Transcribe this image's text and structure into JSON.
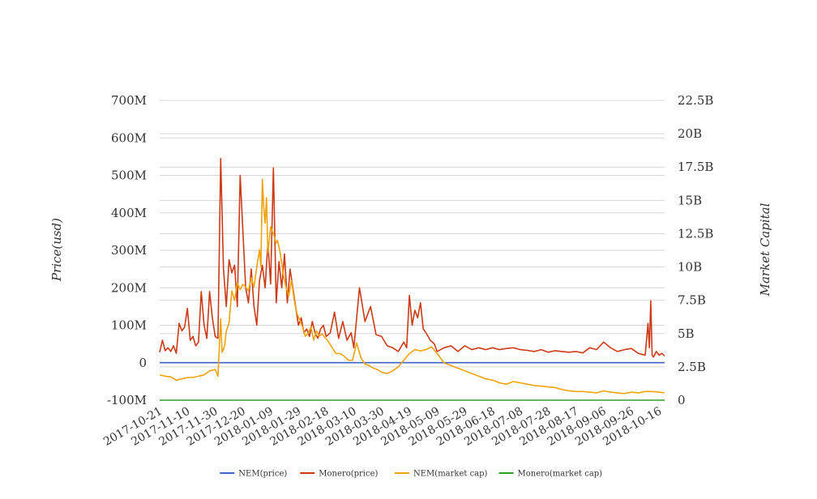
{
  "chart_data": {
    "type": "line",
    "title": "",
    "ylabel_left": "Price(usd)",
    "ylabel_right": "Market Capital",
    "left_ticks": [
      "-100M",
      "0",
      "100M",
      "200M",
      "300M",
      "400M",
      "500M",
      "600M",
      "700M"
    ],
    "right_ticks": [
      "0",
      "2.5B",
      "5B",
      "7.5B",
      "10B",
      "12.5B",
      "15B",
      "17.5B",
      "20B",
      "22.5B"
    ],
    "ylim_left": [
      -100000000,
      700000000
    ],
    "ylim_right": [
      0,
      22500000000
    ],
    "x_ticks": [
      "2017-10-21",
      "2017-11-10",
      "2017-11-30",
      "2017-12-20",
      "2018-01-09",
      "2018-01-29",
      "2018-02-18",
      "2018-03-10",
      "2018-03-30",
      "2018-04-19",
      "2018-05-09",
      "2018-05-29",
      "2018-06-18",
      "2018-07-08",
      "2018-07-28",
      "2018-08-17",
      "2018-09-06",
      "2018-09-26",
      "2018-10-16"
    ],
    "xlim": [
      "2017-10-21",
      "2018-10-20"
    ],
    "grid": true,
    "legend_position": "bottom",
    "series": [
      {
        "name": "NEM(price)",
        "axis": "left",
        "color": "#3b62c4",
        "x": [
          "2017-10-21",
          "2018-10-20"
        ],
        "values": [
          0.25,
          0.12
        ]
      },
      {
        "name": "Monero(price)",
        "axis": "left",
        "color": "#cc3a17",
        "x": [
          "2017-10-21",
          "2017-10-23",
          "2017-10-25",
          "2017-10-27",
          "2017-10-29",
          "2017-10-31",
          "2017-11-02",
          "2017-11-04",
          "2017-11-06",
          "2017-11-08",
          "2017-11-10",
          "2017-11-12",
          "2017-11-14",
          "2017-11-16",
          "2017-11-18",
          "2017-11-20",
          "2017-11-22",
          "2017-11-24",
          "2017-11-26",
          "2017-11-28",
          "2017-11-30",
          "2017-12-02",
          "2017-12-04",
          "2017-12-06",
          "2017-12-08",
          "2017-12-10",
          "2017-12-12",
          "2017-12-14",
          "2017-12-16",
          "2017-12-18",
          "2017-12-20",
          "2017-12-22",
          "2017-12-24",
          "2017-12-26",
          "2017-12-28",
          "2017-12-30",
          "2018-01-01",
          "2018-01-03",
          "2018-01-05",
          "2018-01-07",
          "2018-01-09",
          "2018-01-11",
          "2018-01-13",
          "2018-01-15",
          "2018-01-17",
          "2018-01-19",
          "2018-01-21",
          "2018-01-23",
          "2018-01-25",
          "2018-01-27",
          "2018-01-29",
          "2018-01-31",
          "2018-02-02",
          "2018-02-04",
          "2018-02-06",
          "2018-02-08",
          "2018-02-10",
          "2018-02-12",
          "2018-02-14",
          "2018-02-16",
          "2018-02-18",
          "2018-02-21",
          "2018-02-24",
          "2018-02-27",
          "2018-03-02",
          "2018-03-05",
          "2018-03-08",
          "2018-03-10",
          "2018-03-14",
          "2018-03-18",
          "2018-03-22",
          "2018-03-26",
          "2018-03-30",
          "2018-04-03",
          "2018-04-07",
          "2018-04-11",
          "2018-04-15",
          "2018-04-17",
          "2018-04-19",
          "2018-04-21",
          "2018-04-23",
          "2018-04-25",
          "2018-04-27",
          "2018-04-29",
          "2018-05-01",
          "2018-05-04",
          "2018-05-07",
          "2018-05-09",
          "2018-05-14",
          "2018-05-19",
          "2018-05-24",
          "2018-05-29",
          "2018-06-03",
          "2018-06-08",
          "2018-06-13",
          "2018-06-18",
          "2018-06-23",
          "2018-06-28",
          "2018-07-03",
          "2018-07-08",
          "2018-07-13",
          "2018-07-18",
          "2018-07-23",
          "2018-07-28",
          "2018-08-02",
          "2018-08-07",
          "2018-08-12",
          "2018-08-17",
          "2018-08-22",
          "2018-08-27",
          "2018-09-01",
          "2018-09-06",
          "2018-09-11",
          "2018-09-16",
          "2018-09-21",
          "2018-09-26",
          "2018-10-01",
          "2018-10-06",
          "2018-10-08",
          "2018-10-09",
          "2018-10-10",
          "2018-10-11",
          "2018-10-12",
          "2018-10-14",
          "2018-10-16",
          "2018-10-18",
          "2018-10-20"
        ],
        "values": [
          28000000,
          60000000,
          32000000,
          40000000,
          30000000,
          45000000,
          25000000,
          105000000,
          85000000,
          95000000,
          145000000,
          60000000,
          70000000,
          45000000,
          55000000,
          190000000,
          100000000,
          65000000,
          190000000,
          120000000,
          70000000,
          65000000,
          545000000,
          250000000,
          150000000,
          275000000,
          240000000,
          260000000,
          150000000,
          500000000,
          350000000,
          200000000,
          160000000,
          250000000,
          150000000,
          100000000,
          220000000,
          260000000,
          200000000,
          320000000,
          210000000,
          520000000,
          160000000,
          270000000,
          200000000,
          290000000,
          160000000,
          250000000,
          200000000,
          150000000,
          100000000,
          120000000,
          80000000,
          90000000,
          70000000,
          110000000,
          80000000,
          65000000,
          90000000,
          100000000,
          70000000,
          80000000,
          135000000,
          65000000,
          110000000,
          60000000,
          80000000,
          40000000,
          200000000,
          110000000,
          150000000,
          75000000,
          70000000,
          45000000,
          40000000,
          30000000,
          55000000,
          40000000,
          180000000,
          100000000,
          140000000,
          120000000,
          160000000,
          90000000,
          80000000,
          60000000,
          50000000,
          30000000,
          40000000,
          45000000,
          30000000,
          45000000,
          35000000,
          40000000,
          35000000,
          40000000,
          35000000,
          38000000,
          40000000,
          35000000,
          33000000,
          30000000,
          35000000,
          28000000,
          32000000,
          30000000,
          28000000,
          30000000,
          26000000,
          40000000,
          35000000,
          55000000,
          40000000,
          30000000,
          35000000,
          38000000,
          25000000,
          20000000,
          105000000,
          40000000,
          165000000,
          20000000,
          15000000,
          30000000,
          20000000,
          25000000,
          18000000
        ]
      },
      {
        "name": "NEM(market cap)",
        "axis": "right",
        "color": "#f0a30a",
        "x": [
          "2017-10-21",
          "2017-10-25",
          "2017-10-29",
          "2017-11-02",
          "2017-11-06",
          "2017-11-10",
          "2017-11-14",
          "2017-11-18",
          "2017-11-22",
          "2017-11-26",
          "2017-11-30",
          "2017-12-02",
          "2017-12-04",
          "2017-12-05",
          "2017-12-06",
          "2017-12-07",
          "2017-12-08",
          "2017-12-10",
          "2017-12-12",
          "2017-12-14",
          "2017-12-16",
          "2017-12-18",
          "2017-12-20",
          "2017-12-22",
          "2017-12-24",
          "2017-12-26",
          "2017-12-28",
          "2017-12-30",
          "2018-01-01",
          "2018-01-02",
          "2018-01-03",
          "2018-01-04",
          "2018-01-05",
          "2018-01-06",
          "2018-01-07",
          "2018-01-09",
          "2018-01-11",
          "2018-01-13",
          "2018-01-14",
          "2018-01-16",
          "2018-01-18",
          "2018-01-20",
          "2018-01-22",
          "2018-01-24",
          "2018-01-26",
          "2018-01-28",
          "2018-01-30",
          "2018-02-01",
          "2018-02-03",
          "2018-02-05",
          "2018-02-07",
          "2018-02-09",
          "2018-02-11",
          "2018-02-13",
          "2018-02-15",
          "2018-02-17",
          "2018-02-19",
          "2018-02-22",
          "2018-02-25",
          "2018-02-28",
          "2018-03-03",
          "2018-03-06",
          "2018-03-09",
          "2018-03-12",
          "2018-03-15",
          "2018-03-18",
          "2018-03-21",
          "2018-03-24",
          "2018-03-27",
          "2018-03-30",
          "2018-04-03",
          "2018-04-07",
          "2018-04-11",
          "2018-04-15",
          "2018-04-19",
          "2018-04-23",
          "2018-04-27",
          "2018-05-01",
          "2018-05-05",
          "2018-05-09",
          "2018-05-14",
          "2018-05-19",
          "2018-05-24",
          "2018-05-29",
          "2018-06-03",
          "2018-06-08",
          "2018-06-13",
          "2018-06-18",
          "2018-06-23",
          "2018-06-28",
          "2018-07-03",
          "2018-07-08",
          "2018-07-13",
          "2018-07-18",
          "2018-07-23",
          "2018-07-28",
          "2018-08-02",
          "2018-08-07",
          "2018-08-12",
          "2018-08-17",
          "2018-08-22",
          "2018-08-27",
          "2018-09-01",
          "2018-09-06",
          "2018-09-11",
          "2018-09-16",
          "2018-09-21",
          "2018-09-26",
          "2018-10-01",
          "2018-10-06",
          "2018-10-11",
          "2018-10-16",
          "2018-10-20"
        ],
        "values": [
          1900000000,
          1800000000,
          1750000000,
          1500000000,
          1600000000,
          1700000000,
          1700000000,
          1800000000,
          1900000000,
          2200000000,
          2300000000,
          1800000000,
          6100000000,
          3600000000,
          3800000000,
          4200000000,
          5200000000,
          5800000000,
          8200000000,
          7500000000,
          8800000000,
          8300000000,
          8700000000,
          8500000000,
          8200000000,
          9200000000,
          8500000000,
          10000000000,
          11300000000,
          10000000000,
          16600000000,
          14500000000,
          13300000000,
          15200000000,
          11000000000,
          13000000000,
          12500000000,
          11800000000,
          12000000000,
          11000000000,
          9500000000,
          8500000000,
          7800000000,
          9000000000,
          7500000000,
          6500000000,
          6000000000,
          5500000000,
          4800000000,
          5000000000,
          5500000000,
          4500000000,
          5200000000,
          4800000000,
          5000000000,
          4700000000,
          4500000000,
          4000000000,
          3500000000,
          3500000000,
          3300000000,
          3000000000,
          3000000000,
          4300000000,
          3200000000,
          2700000000,
          2600000000,
          2400000000,
          2300000000,
          2100000000,
          2000000000,
          2200000000,
          2500000000,
          3000000000,
          3500000000,
          3800000000,
          3700000000,
          3800000000,
          4000000000,
          3500000000,
          2800000000,
          2600000000,
          2400000000,
          2200000000,
          2000000000,
          1800000000,
          1600000000,
          1500000000,
          1300000000,
          1200000000,
          1400000000,
          1300000000,
          1200000000,
          1100000000,
          1050000000,
          1000000000,
          950000000,
          800000000,
          700000000,
          650000000,
          650000000,
          600000000,
          550000000,
          700000000,
          600000000,
          550000000,
          500000000,
          600000000,
          550000000,
          650000000,
          650000000,
          600000000,
          550000000
        ]
      },
      {
        "name": "Monero(market cap)",
        "axis": "right",
        "color": "#2ca02c",
        "x": [
          "2017-10-21",
          "2018-10-20"
        ],
        "values": [
          0,
          0
        ]
      }
    ]
  }
}
